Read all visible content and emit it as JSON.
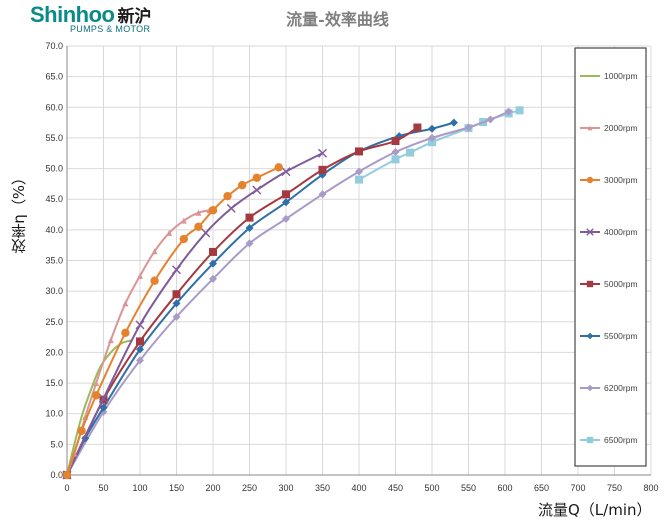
{
  "logo": {
    "brand": "Shinhoo",
    "brand_cn": "新沪",
    "tagline": "PUMPS & MOTOR"
  },
  "chart_data": {
    "type": "line",
    "title": "流量-效率曲线",
    "xlabel": "流量Q（L/min）",
    "ylabel": "效率η（%）",
    "xlim": [
      0,
      800
    ],
    "ylim": [
      0,
      70
    ],
    "xticks": [
      0,
      50,
      100,
      150,
      200,
      250,
      300,
      350,
      400,
      450,
      500,
      550,
      600,
      650,
      700,
      750,
      800
    ],
    "yticks": [
      0,
      5,
      10,
      15,
      20,
      25,
      30,
      35,
      40,
      45,
      50,
      55,
      60,
      65,
      70
    ],
    "grid": true,
    "legend_position": "right",
    "series": [
      {
        "name": "1000rpm",
        "color": "#9bbb59",
        "marker": "none",
        "x": [
          0,
          10,
          20,
          30,
          45,
          60,
          75,
          90
        ],
        "y": [
          0,
          5,
          9.5,
          13,
          17.5,
          20,
          21.5,
          22
        ]
      },
      {
        "name": "2000rpm",
        "color": "#d99694",
        "marker": "triangle",
        "x": [
          0,
          10,
          25,
          40,
          60,
          80,
          100,
          120,
          140,
          160,
          180,
          195
        ],
        "y": [
          0,
          3.5,
          9.5,
          15,
          22,
          28,
          32.5,
          36.5,
          39.5,
          41.5,
          42.8,
          43.2
        ]
      },
      {
        "name": "3000rpm",
        "color": "#e5822e",
        "marker": "circle",
        "x": [
          0,
          20,
          40,
          80,
          120,
          160,
          180,
          200,
          220,
          240,
          260,
          290
        ],
        "y": [
          0,
          7.2,
          13,
          23.2,
          31.7,
          38.5,
          40.5,
          43.2,
          45.5,
          47.3,
          48.5,
          50.2
        ]
      },
      {
        "name": "4000rpm",
        "color": "#7e5b9b",
        "marker": "x",
        "x": [
          0,
          50,
          100,
          150,
          190,
          225,
          260,
          300,
          350
        ],
        "y": [
          0,
          12.5,
          24.5,
          33.5,
          39.5,
          43.5,
          46.5,
          49.5,
          52.5
        ]
      },
      {
        "name": "5000rpm",
        "color": "#a6393f",
        "marker": "square",
        "x": [
          0,
          50,
          100,
          150,
          200,
          250,
          300,
          350,
          400,
          450,
          480
        ],
        "y": [
          0,
          12.3,
          21.8,
          29.5,
          36.4,
          42,
          45.8,
          49.8,
          52.8,
          54.5,
          56.7
        ]
      },
      {
        "name": "5500rpm",
        "color": "#2e6fa7",
        "marker": "diamond",
        "x": [
          0,
          25,
          50,
          100,
          150,
          200,
          250,
          300,
          350,
          400,
          455,
          500,
          530
        ],
        "y": [
          0,
          6,
          11,
          20.5,
          28,
          34.5,
          40.3,
          44.5,
          49,
          52.8,
          55.3,
          56.5,
          57.5
        ]
      },
      {
        "name": "6200rpm",
        "color": "#a99bc8",
        "marker": "diamond",
        "x": [
          0,
          50,
          100,
          150,
          200,
          250,
          300,
          350,
          400,
          450,
          500,
          550,
          580,
          605
        ],
        "y": [
          0,
          10.3,
          18.7,
          25.8,
          32,
          37.8,
          41.8,
          45.8,
          49.5,
          52.7,
          55,
          56.7,
          58,
          59.3
        ]
      },
      {
        "name": "6500rpm",
        "color": "#93cddd",
        "marker": "square",
        "x": [
          400,
          450,
          470,
          500,
          550,
          570,
          605,
          620
        ],
        "y": [
          48.2,
          51.5,
          52.6,
          54.3,
          56.6,
          57.6,
          59,
          59.5
        ]
      }
    ]
  }
}
